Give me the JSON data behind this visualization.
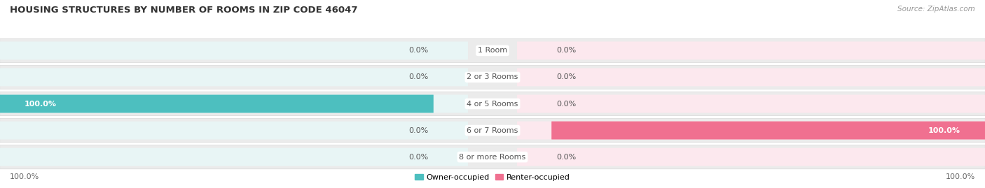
{
  "title": "HOUSING STRUCTURES BY NUMBER OF ROOMS IN ZIP CODE 46047",
  "source": "Source: ZipAtlas.com",
  "categories": [
    "1 Room",
    "2 or 3 Rooms",
    "4 or 5 Rooms",
    "6 or 7 Rooms",
    "8 or more Rooms"
  ],
  "owner_values": [
    0.0,
    0.0,
    100.0,
    0.0,
    0.0
  ],
  "renter_values": [
    0.0,
    0.0,
    0.0,
    100.0,
    0.0
  ],
  "owner_color": "#4dbfbf",
  "renter_color": "#f07090",
  "owner_bg_color": "#e8f5f5",
  "renter_bg_color": "#fce8ee",
  "row_bg_color": "#f2f2f2",
  "bg_color": "#ffffff",
  "title_color": "#333333",
  "source_color": "#999999",
  "label_color_dark": "#555555",
  "label_color_white": "#ffffff",
  "title_fontsize": 9.5,
  "label_fontsize": 8,
  "source_fontsize": 7.5,
  "legend_fontsize": 8,
  "legend_label_owner": "Owner-occupied",
  "legend_label_renter": "Renter-occupied",
  "bottom_left_label": "100.0%",
  "bottom_right_label": "100.0%"
}
